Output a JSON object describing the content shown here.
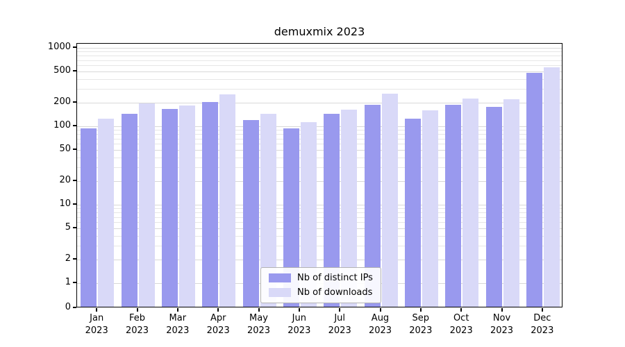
{
  "chart_data": {
    "type": "bar",
    "title": "demuxmix 2023",
    "year_label": "2023",
    "categories": [
      "Jan",
      "Feb",
      "Mar",
      "Apr",
      "May",
      "Jun",
      "Jul",
      "Aug",
      "Sep",
      "Oct",
      "Nov",
      "Dec"
    ],
    "series": [
      {
        "name": "Nb of distinct IPs",
        "color": "#9999ee",
        "values": [
          90,
          140,
          160,
          195,
          115,
          90,
          140,
          180,
          120,
          180,
          170,
          460
        ]
      },
      {
        "name": "Nb of downloads",
        "color": "#d9d9f8",
        "values": [
          120,
          190,
          178,
          245,
          140,
          108,
          158,
          248,
          152,
          215,
          212,
          545
        ]
      }
    ],
    "yticks": [
      0,
      1,
      2,
      5,
      10,
      20,
      50,
      100,
      200,
      500,
      1000
    ],
    "ylim": [
      0,
      1000
    ],
    "yscale": "symlog",
    "grid": "horizontal log minor gridlines",
    "legend_position": "bottom-center inside plot",
    "xlabel": "",
    "ylabel": ""
  }
}
